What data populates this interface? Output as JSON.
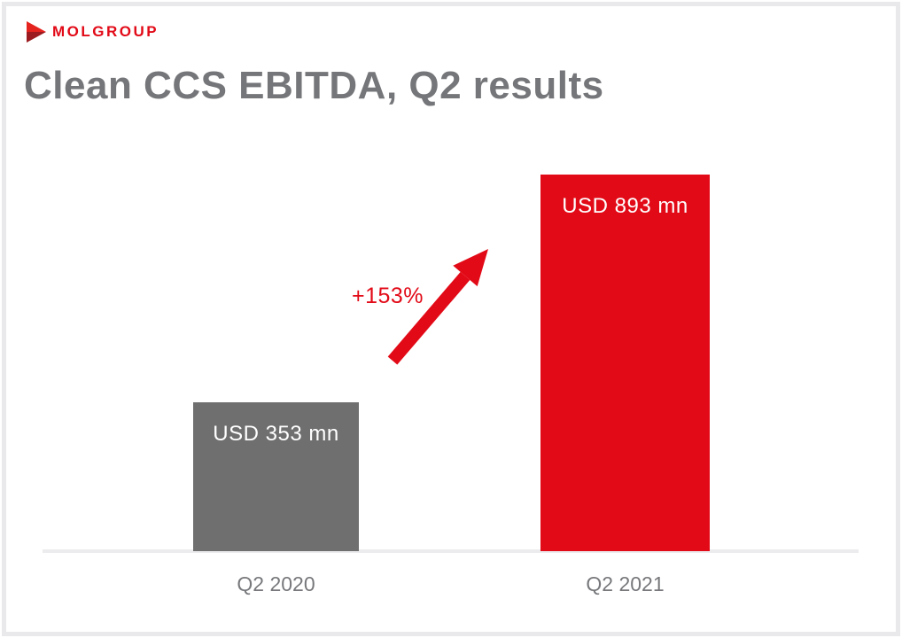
{
  "brand": {
    "logo_text": "MOLGROUP",
    "logo_color": "#e20a17",
    "logo_triangle_top_color": "#e5231f",
    "logo_triangle_bottom_color": "#9c1b20"
  },
  "title": "Clean CCS EBITDA, Q2 results",
  "chart_data": {
    "type": "bar",
    "title": "Clean CCS EBITDA, Q2 results",
    "categories": [
      "Q2 2020",
      "Q2 2021"
    ],
    "values": [
      353,
      893
    ],
    "value_labels": [
      "USD 353 mn",
      "USD 893 mn"
    ],
    "unit": "USD mn",
    "bar_colors": [
      "#706f6f",
      "#e20a17"
    ],
    "annotation": "+153%",
    "annotation_color": "#e20a17",
    "xlabel": "",
    "ylabel": "",
    "ylim": [
      0,
      950
    ],
    "grid": false,
    "legend": "none",
    "axis_line_color": "#ececee"
  },
  "colors": {
    "accent_red": "#e20a17",
    "bar_gray": "#706f6f",
    "title_gray": "#757679",
    "axis_label_gray": "#77787b",
    "frame_border": "#e9e9eb",
    "background": "#ffffff"
  }
}
